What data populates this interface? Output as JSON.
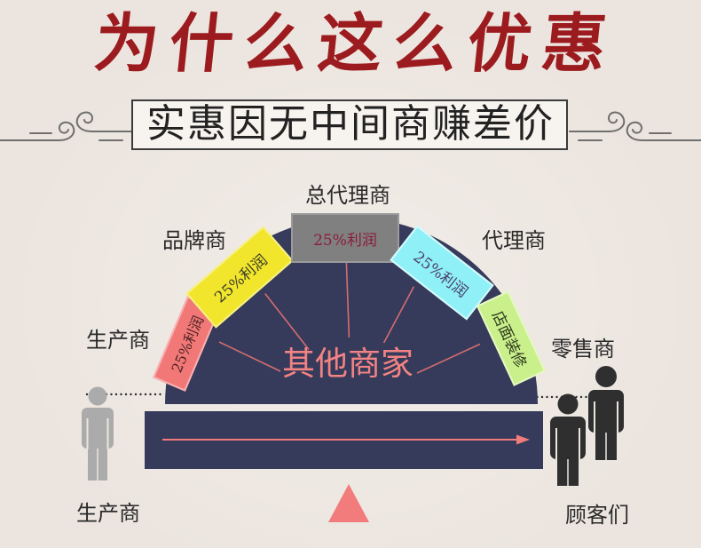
{
  "title": "为什么这么优惠",
  "subtitle": "实惠因无中间商赚差价",
  "labels": {
    "general_agent": "总代理商",
    "brand": "品牌商",
    "agent": "代理商",
    "producer_left": "生产商",
    "retailer": "零售商",
    "producer_bottom": "生产商",
    "customers": "顾客们"
  },
  "cards": [
    {
      "text": "25%利润",
      "color": "#f27878"
    },
    {
      "text": "25%利润",
      "color": "#f1e62c"
    },
    {
      "text": "25%利润",
      "color": "#808080"
    },
    {
      "text": "25%利润",
      "color": "#8ff0f7"
    },
    {
      "text": "店面装修",
      "color": "#caf08b"
    }
  ],
  "center_text": "其他商家",
  "colors": {
    "title": "#9c1b1f",
    "navy": "#363b5b",
    "accent_pink": "#f27b7b",
    "background": "#ece5df"
  },
  "icons": {
    "producer": "person-icon",
    "customers": "two-people-icon"
  }
}
